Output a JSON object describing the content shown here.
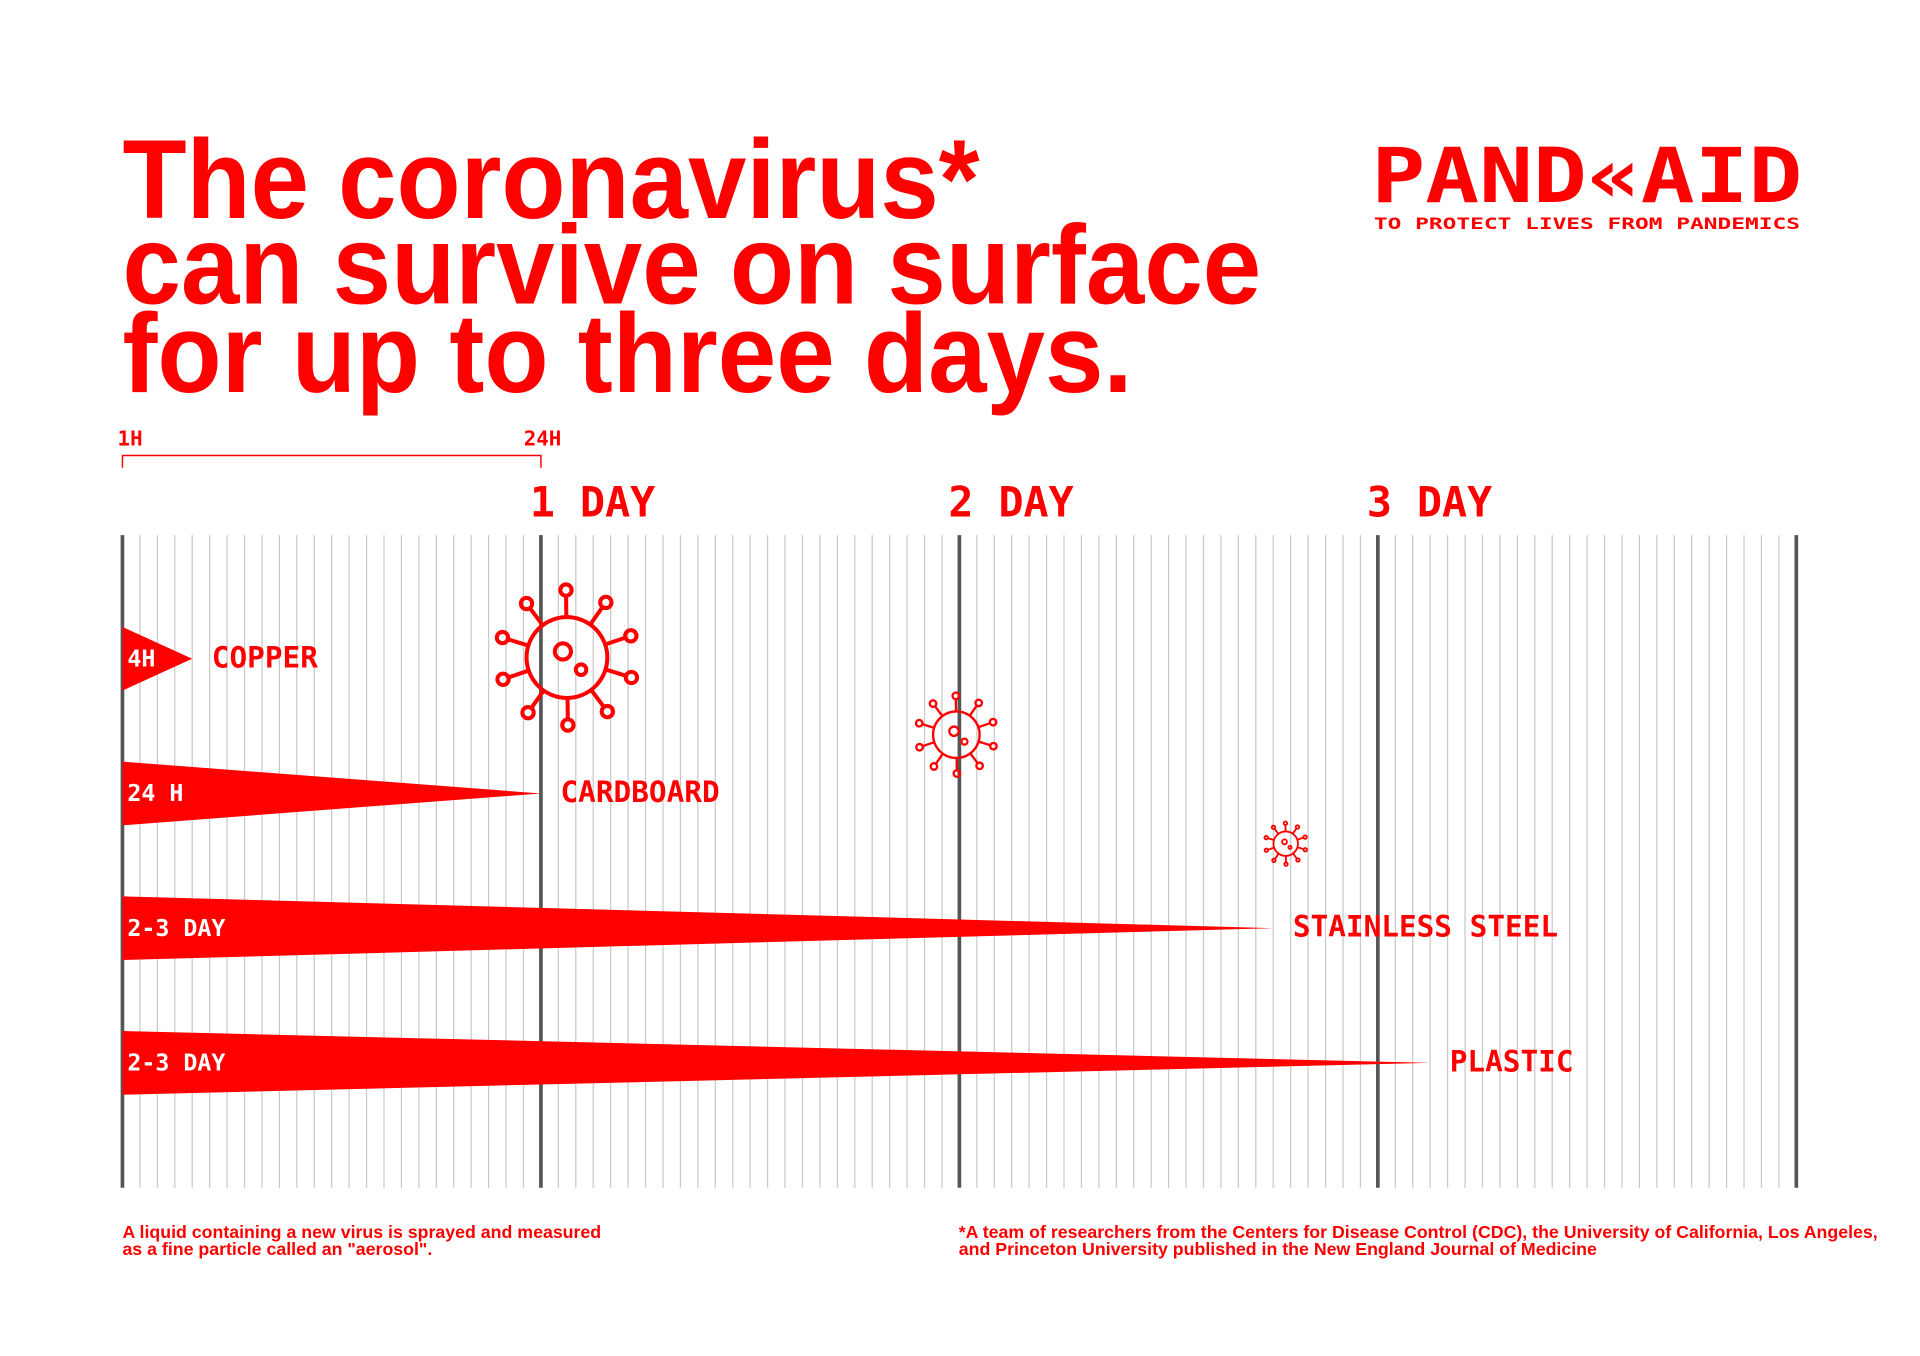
{
  "brand": {
    "name": "PAND«AID",
    "tagline": "TO PROTECT LIVES FROM PANDEMICS"
  },
  "chart_data": {
    "type": "bar",
    "orientation": "horizontal",
    "title": [
      "The coronavirus*",
      "can survive on surface",
      "for up to three days."
    ],
    "color": "#ff0000",
    "categories": [
      "COPPER",
      "CARDBOARD",
      "STAINLESS STEEL",
      "PLASTIC"
    ],
    "values": [
      4,
      24,
      66,
      75
    ],
    "value_labels": [
      "4H",
      "24 H",
      "2-3 DAY",
      "2-3 DAY"
    ],
    "xlim": [
      0,
      96
    ],
    "xticks": [
      {
        "value": 24,
        "label": "1 DAY"
      },
      {
        "value": 48,
        "label": "2 DAY"
      },
      {
        "value": 72,
        "label": "3 DAY"
      }
    ],
    "bracket": {
      "start": {
        "value": 0,
        "label": "1H"
      },
      "end": {
        "value": 24,
        "label": "24H"
      }
    },
    "grid": true,
    "footnotes": [
      [
        "A liquid containing a new virus is sprayed and measured",
        "as a fine particle called an \"aerosol\"."
      ],
      [
        "*A team of researchers from the Centers for Disease Control (CDC), the University of California, Los Angeles,",
        "and Princeton University published in the New England Journal of Medicine"
      ]
    ]
  }
}
